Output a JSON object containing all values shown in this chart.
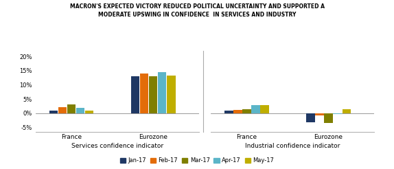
{
  "title_line1": "MACRON'S EXPECTED VICTORY REDUCED POLITICAL UNCERTAINTY AND SUPPORTED A",
  "title_line2": "MODERATE UPSWING IN CONFIDENCE  IN SERVICES AND INDUSTRY",
  "legend_labels": [
    "Jan-17",
    "Feb-17",
    "Mar-17",
    "Apr-17",
    "May-17"
  ],
  "colors": [
    "#1f3864",
    "#e36c09",
    "#7f7f00",
    "#5bb5c8",
    "#bfae00"
  ],
  "services": {
    "xlabel": "Services confidence indicator",
    "groups": [
      "France",
      "Eurozone"
    ],
    "values": [
      [
        1.0,
        2.2,
        3.2,
        1.8,
        1.0
      ],
      [
        13.0,
        14.0,
        13.0,
        14.5,
        13.2
      ]
    ]
  },
  "industrial": {
    "xlabel": "Industrial confidence indicator",
    "groups": [
      "France",
      "Eurozone"
    ],
    "values": [
      [
        1.0,
        1.3,
        1.5,
        2.8,
        3.0
      ],
      [
        -3.2,
        -0.8,
        -3.5,
        -0.3,
        1.5
      ]
    ]
  },
  "ylim": [
    -6.5,
    22
  ],
  "yticks": [
    -5,
    0,
    5,
    10,
    15,
    20
  ],
  "ytick_labels": [
    "-5%",
    "0%",
    "5%",
    "10%",
    "15%",
    "20%"
  ],
  "background_color": "#ffffff"
}
